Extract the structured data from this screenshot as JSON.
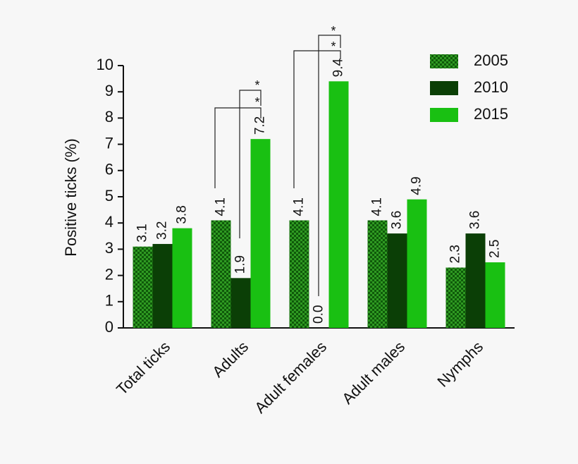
{
  "chart_data": {
    "type": "bar",
    "y_label": "Positive ticks (%)",
    "categories": [
      "Total ticks",
      "Adults",
      "Adult females",
      "Adult males",
      "Nymphs"
    ],
    "series": [
      {
        "name": "2005",
        "color": "#2f9a22",
        "pattern": "checker",
        "values": [
          3.1,
          4.1,
          4.1,
          4.1,
          2.3
        ],
        "value_labels": [
          "3.1",
          "4.1",
          "4.1",
          "4.1",
          "2.3"
        ]
      },
      {
        "name": "2010",
        "color": "#0b3f06",
        "values": [
          3.2,
          1.9,
          0,
          3.6,
          3.6
        ],
        "value_labels": [
          "3.2",
          "1.9",
          "0.0",
          "3.6",
          "3.6"
        ]
      },
      {
        "name": "2015",
        "color": "#19c012",
        "values": [
          3.8,
          7.2,
          9.4,
          4.9,
          2.5
        ],
        "value_labels": [
          "3.8",
          "7.2",
          "9.4",
          "4.9",
          "2.5"
        ]
      }
    ],
    "ylim": [
      0,
      10
    ],
    "yticks": [
      0,
      1,
      2,
      3,
      4,
      5,
      6,
      7,
      8,
      9,
      10
    ],
    "annotations": [
      "*",
      "*",
      "*",
      "*"
    ]
  }
}
